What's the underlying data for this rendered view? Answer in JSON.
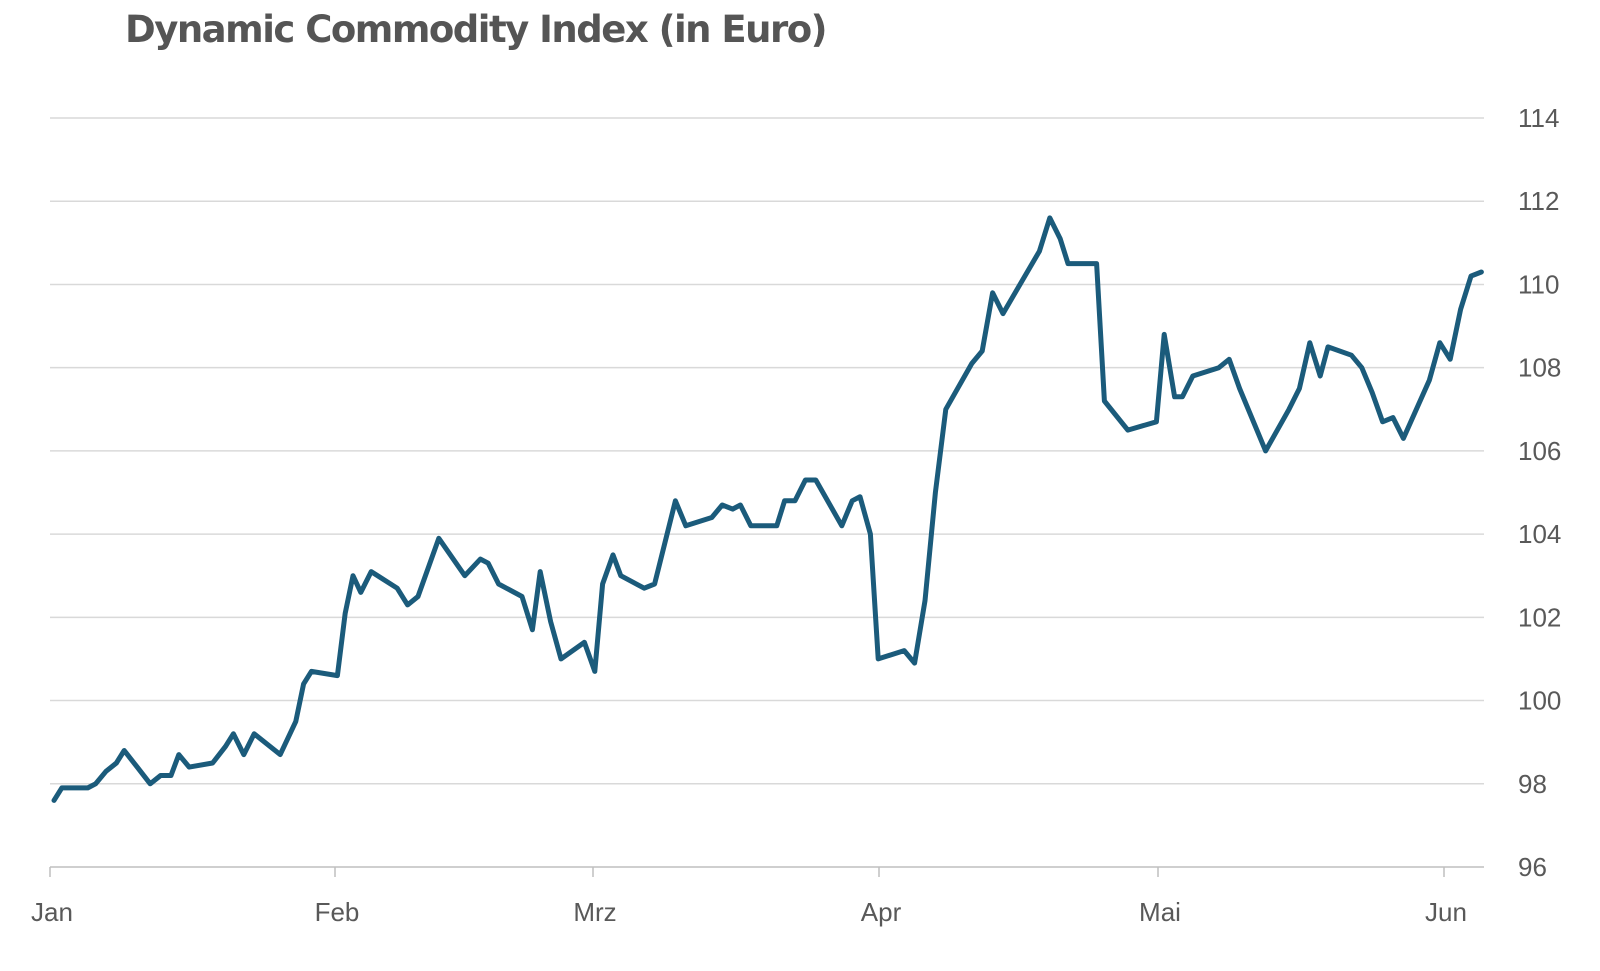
{
  "chart_data": {
    "type": "line",
    "title": "Dynamic Commodity Index (in Euro)",
    "xlabel": "",
    "ylabel": "",
    "x_tick_labels": [
      "Jan",
      "Feb",
      "Mrz",
      "Apr",
      "Mai",
      "Jun"
    ],
    "y_ticks": [
      96,
      98,
      100,
      102,
      104,
      106,
      108,
      110,
      112,
      114
    ],
    "ylim": [
      96,
      114
    ],
    "y_axis_position": "right",
    "grid": true,
    "legend": "none",
    "series": [
      {
        "color": "#1b5b7b",
        "points": [
          [
            0,
            97.6
          ],
          [
            0.3,
            97.9
          ],
          [
            1.3,
            97.9
          ],
          [
            1.6,
            98.0
          ],
          [
            2.0,
            98.3
          ],
          [
            2.4,
            98.5
          ],
          [
            2.7,
            98.8
          ],
          [
            3.2,
            98.4
          ],
          [
            3.7,
            98.0
          ],
          [
            4.1,
            98.2
          ],
          [
            4.5,
            98.2
          ],
          [
            4.8,
            98.7
          ],
          [
            5.2,
            98.4
          ],
          [
            6.1,
            98.5
          ],
          [
            6.6,
            98.9
          ],
          [
            6.9,
            99.2
          ],
          [
            7.3,
            98.7
          ],
          [
            7.7,
            99.2
          ],
          [
            8.7,
            98.7
          ],
          [
            9.3,
            99.5
          ],
          [
            9.6,
            100.4
          ],
          [
            9.9,
            100.7
          ],
          [
            10.9,
            100.6
          ],
          [
            11.2,
            102.1
          ],
          [
            11.5,
            103.0
          ],
          [
            11.8,
            102.6
          ],
          [
            12.2,
            103.1
          ],
          [
            13.2,
            102.7
          ],
          [
            13.6,
            102.3
          ],
          [
            14.0,
            102.5
          ],
          [
            14.8,
            103.9
          ],
          [
            15.8,
            103.0
          ],
          [
            16.4,
            103.4
          ],
          [
            16.7,
            103.3
          ],
          [
            17.1,
            102.8
          ],
          [
            18.0,
            102.5
          ],
          [
            18.4,
            101.7
          ],
          [
            18.7,
            103.1
          ],
          [
            19.1,
            101.9
          ],
          [
            19.5,
            101.0
          ],
          [
            20.4,
            101.4
          ],
          [
            20.8,
            100.7
          ],
          [
            21.1,
            102.8
          ],
          [
            21.5,
            103.5
          ],
          [
            21.8,
            103.0
          ],
          [
            22.7,
            102.7
          ],
          [
            23.1,
            102.8
          ],
          [
            23.9,
            104.8
          ],
          [
            24.3,
            104.2
          ],
          [
            25.3,
            104.4
          ],
          [
            25.7,
            104.7
          ],
          [
            26.1,
            104.6
          ],
          [
            26.4,
            104.7
          ],
          [
            26.8,
            104.2
          ],
          [
            27.8,
            104.2
          ],
          [
            28.1,
            104.8
          ],
          [
            28.5,
            104.8
          ],
          [
            28.9,
            105.3
          ],
          [
            29.3,
            105.3
          ],
          [
            30.3,
            104.2
          ],
          [
            30.7,
            104.8
          ],
          [
            31.0,
            104.9
          ],
          [
            31.4,
            104.0
          ],
          [
            31.7,
            101.0
          ],
          [
            32.7,
            101.2
          ],
          [
            33.1,
            100.9
          ],
          [
            33.5,
            102.4
          ],
          [
            33.9,
            105.0
          ],
          [
            34.3,
            107.0
          ],
          [
            35.3,
            108.1
          ],
          [
            35.7,
            108.4
          ],
          [
            36.1,
            109.8
          ],
          [
            36.5,
            109.3
          ],
          [
            37.9,
            110.8
          ],
          [
            38.3,
            111.6
          ],
          [
            38.7,
            111.1
          ],
          [
            39.0,
            110.5
          ],
          [
            40.1,
            110.5
          ],
          [
            40.4,
            107.2
          ],
          [
            41.3,
            106.5
          ],
          [
            42.4,
            106.7
          ],
          [
            42.7,
            108.8
          ],
          [
            43.1,
            107.3
          ],
          [
            43.4,
            107.3
          ],
          [
            43.8,
            107.8
          ],
          [
            44.8,
            108.0
          ],
          [
            45.2,
            108.2
          ],
          [
            45.6,
            107.5
          ],
          [
            46.6,
            106.0
          ],
          [
            47.5,
            107.0
          ],
          [
            47.9,
            107.5
          ],
          [
            48.3,
            108.6
          ],
          [
            48.7,
            107.8
          ],
          [
            49.0,
            108.5
          ],
          [
            49.9,
            108.3
          ],
          [
            50.3,
            108.0
          ],
          [
            50.7,
            107.4
          ],
          [
            51.1,
            106.7
          ],
          [
            51.5,
            106.8
          ],
          [
            51.9,
            106.3
          ],
          [
            52.9,
            107.7
          ],
          [
            53.3,
            108.6
          ],
          [
            53.7,
            108.2
          ],
          [
            54.1,
            109.4
          ],
          [
            54.5,
            110.2
          ],
          [
            54.9,
            110.3
          ]
        ]
      }
    ]
  }
}
